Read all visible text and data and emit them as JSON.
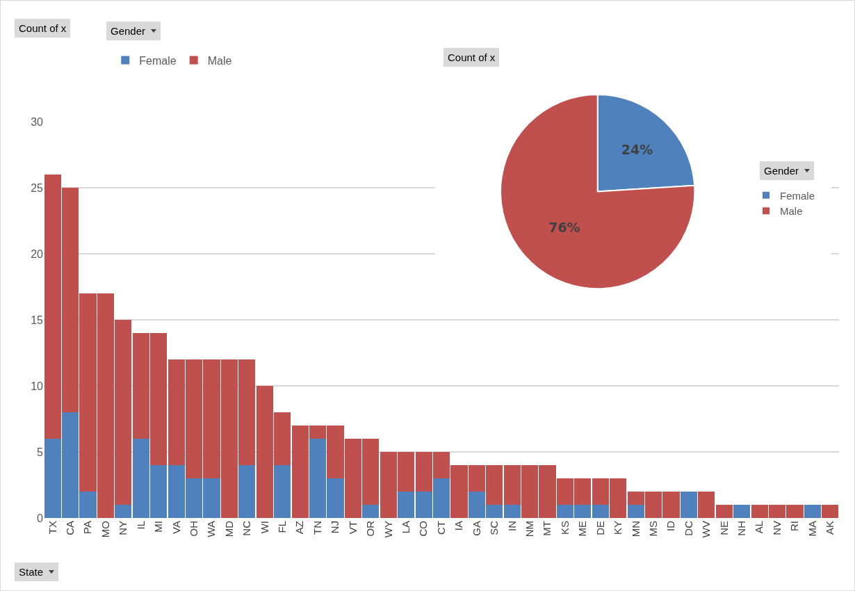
{
  "chart_data": [
    {
      "type": "bar",
      "stacked": true,
      "ylabel": "Count of x",
      "xlabel": "State",
      "legend_title": "Gender",
      "legend": "top left",
      "grid": "y",
      "categories": [
        "TX",
        "CA",
        "PA",
        "MO",
        "NY",
        "IL",
        "MI",
        "VA",
        "OH",
        "WA",
        "MD",
        "NC",
        "WI",
        "FL",
        "AZ",
        "TN",
        "NJ",
        "VT",
        "OR",
        "WY",
        "LA",
        "CO",
        "CT",
        "IA",
        "GA",
        "SC",
        "IN",
        "NM",
        "MT",
        "KS",
        "ME",
        "DE",
        "KY",
        "MN",
        "MS",
        "ID",
        "DC",
        "WV",
        "NE",
        "NH",
        "AL",
        "NV",
        "RI",
        "MA",
        "AK"
      ],
      "series": [
        {
          "name": "Female",
          "color": "#4f81bd",
          "values": [
            6,
            8,
            2,
            0,
            1,
            6,
            4,
            4,
            3,
            3,
            0,
            4,
            0,
            4,
            0,
            6,
            3,
            0,
            1,
            0,
            2,
            2,
            3,
            0,
            2,
            1,
            1,
            0,
            0,
            1,
            1,
            1,
            0,
            1,
            0,
            0,
            2,
            0,
            0,
            1,
            0,
            0,
            0,
            1,
            0
          ]
        },
        {
          "name": "Male",
          "color": "#c0504d",
          "values": [
            20,
            17,
            15,
            17,
            14,
            8,
            10,
            8,
            9,
            9,
            12,
            8,
            10,
            4,
            7,
            1,
            4,
            6,
            5,
            5,
            3,
            3,
            2,
            4,
            2,
            3,
            3,
            4,
            4,
            2,
            2,
            2,
            3,
            1,
            2,
            2,
            0,
            2,
            1,
            0,
            1,
            1,
            1,
            0,
            1
          ]
        }
      ],
      "ylim": [
        0,
        30
      ],
      "yticks": [
        0,
        5,
        10,
        15,
        20,
        25,
        30
      ]
    },
    {
      "type": "pie",
      "title": "Count of x",
      "legend_title": "Gender",
      "legend": "right",
      "categories": [
        "Female",
        "Male"
      ],
      "values": [
        24,
        76
      ],
      "colors": [
        "#4f81bd",
        "#c0504d"
      ],
      "value_labels": [
        "24%",
        "76%"
      ]
    }
  ]
}
